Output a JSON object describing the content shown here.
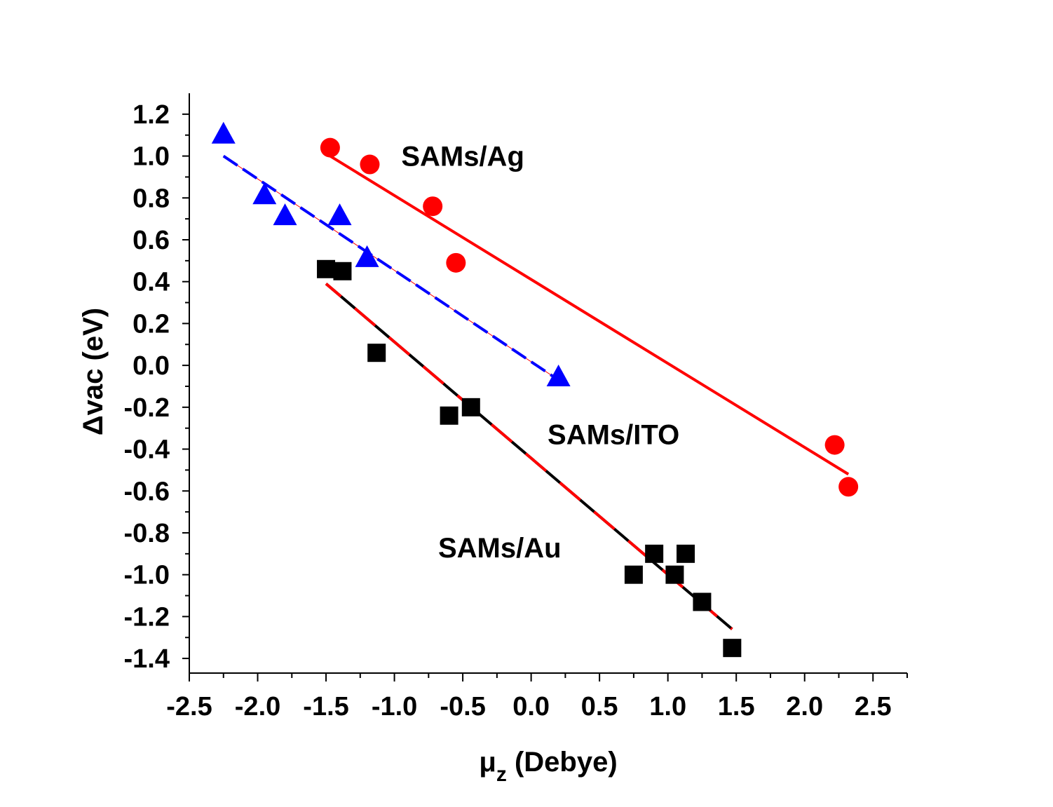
{
  "chart_data": {
    "type": "scatter",
    "xlabel": "μ",
    "xlabel_sub": "z",
    "xlabel_suffix": " (Debye)",
    "ylabel": "Δvac (eV)",
    "xlim": [
      -2.5,
      2.75
    ],
    "ylim": [
      -1.47,
      1.3
    ],
    "x_ticks": [
      -2.5,
      -2.0,
      -1.5,
      -1.0,
      -0.5,
      0.0,
      0.5,
      1.0,
      1.5,
      2.0,
      2.5
    ],
    "x_tick_labels": [
      "-2.5",
      "-2.0",
      "-1.5",
      "-1.0",
      "-0.5",
      "0.0",
      "0.5",
      "1.0",
      "1.5",
      "2.0",
      "2.5"
    ],
    "y_ticks": [
      -1.4,
      -1.2,
      -1.0,
      -0.8,
      -0.6,
      -0.4,
      -0.2,
      0.0,
      0.2,
      0.4,
      0.6,
      0.8,
      1.0,
      1.2
    ],
    "y_tick_labels": [
      "-1.4",
      "-1.2",
      "-1.0",
      "-0.8",
      "-0.6",
      "-0.4",
      "-0.2",
      "0.0",
      "0.2",
      "0.4",
      "0.6",
      "0.8",
      "1.0",
      "1.2"
    ],
    "series": [
      {
        "marker": "circle",
        "color": "#ff0000",
        "points": [
          [
            -1.47,
            1.04
          ],
          [
            -1.18,
            0.96
          ],
          [
            -0.72,
            0.76
          ],
          [
            -0.55,
            0.49
          ],
          [
            2.22,
            -0.38
          ],
          [
            2.32,
            -0.58
          ]
        ],
        "fit": {
          "x": [
            -1.47,
            2.32
          ],
          "y": [
            1.0,
            -0.52
          ],
          "color": "#ff0000",
          "dash": "solid"
        }
      },
      {
        "marker": "triangle",
        "color": "#0000ff",
        "points": [
          [
            -2.25,
            1.1
          ],
          [
            -1.95,
            0.81
          ],
          [
            -1.8,
            0.71
          ],
          [
            -1.4,
            0.71
          ],
          [
            -1.2,
            0.51
          ],
          [
            0.2,
            -0.06
          ]
        ],
        "fit": {
          "x": [
            -2.25,
            0.2
          ],
          "y": [
            1.0,
            -0.07
          ],
          "color": "#0000ff",
          "dash": "dashed",
          "overlay_color": "#ff0000"
        }
      },
      {
        "marker": "square",
        "color": "#000000",
        "points": [
          [
            -1.5,
            0.46
          ],
          [
            -1.38,
            0.45
          ],
          [
            -1.13,
            0.06
          ],
          [
            -0.6,
            -0.24
          ],
          [
            -0.44,
            -0.2
          ],
          [
            0.75,
            -1.0
          ],
          [
            0.9,
            -0.9
          ],
          [
            1.05,
            -1.0
          ],
          [
            1.13,
            -0.9
          ],
          [
            1.25,
            -1.13
          ],
          [
            1.47,
            -1.35
          ]
        ],
        "fit": {
          "x": [
            -1.5,
            1.47
          ],
          "y": [
            0.39,
            -1.26
          ],
          "color": "#000000",
          "dash": "solid",
          "overlay_color": "#ff0000"
        }
      }
    ],
    "annotations": [
      {
        "text": "SAMs/Ag",
        "x": -0.95,
        "y": 1.0
      },
      {
        "text": "SAMs/ITO",
        "x": 0.12,
        "y": -0.33
      },
      {
        "text": "SAMs/Au",
        "x": -0.68,
        "y": -0.87
      }
    ]
  }
}
